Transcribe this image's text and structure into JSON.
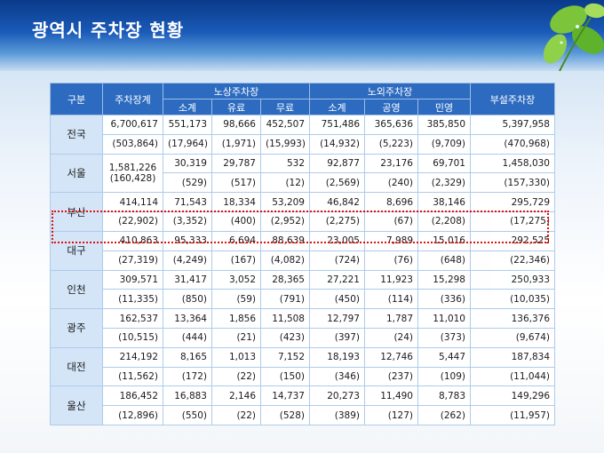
{
  "title": "광역시 주차장 현황",
  "columns": {
    "region": "구분",
    "total": "주차장계",
    "street_group": "노상주차장",
    "offstreet_group": "노외주차장",
    "attached": "부설주차장",
    "street_sub": [
      "소계",
      "유료",
      "무료"
    ],
    "offstreet_sub": [
      "소계",
      "공영",
      "민영"
    ]
  },
  "highlight_color": "#e01010",
  "rows": [
    {
      "name": "전국",
      "r1": [
        "6,700,617",
        "551,173",
        "98,666",
        "452,507",
        "751,486",
        "365,636",
        "385,850",
        "5,397,958"
      ],
      "r2": [
        "(503,864)",
        "(17,964)",
        "(1,971)",
        "(15,993)",
        "(14,932)",
        "(5,223)",
        "(9,709)",
        "(470,968)"
      ]
    },
    {
      "name": "서울",
      "r1": [
        "",
        "30,319",
        "29,787",
        "532",
        "92,877",
        "23,176",
        "69,701",
        "1,458,030"
      ],
      "r2": [
        "",
        "(529)",
        "(517)",
        "(12)",
        "(2,569)",
        "(240)",
        "(2,329)",
        "(157,330)"
      ]
    },
    {
      "name": "부산",
      "r1": [
        "414,114",
        "71,543",
        "18,334",
        "53,209",
        "46,842",
        "8,696",
        "38,146",
        "295,729"
      ],
      "r2": [
        "(22,902)",
        "(3,352)",
        "(400)",
        "(2,952)",
        "(2,275)",
        "(67)",
        "(2,208)",
        "(17,275)"
      ]
    },
    {
      "name": "대구",
      "r1": [
        "410,863",
        "95,333",
        "6,694",
        "88,639",
        "23,005",
        "7,989",
        "15,016",
        "292,525"
      ],
      "r2": [
        "(27,319)",
        "(4,249)",
        "(167)",
        "(4,082)",
        "(724)",
        "(76)",
        "(648)",
        "(22,346)"
      ]
    },
    {
      "name": "인천",
      "r1": [
        "309,571",
        "31,417",
        "3,052",
        "28,365",
        "27,221",
        "11,923",
        "15,298",
        "250,933"
      ],
      "r2": [
        "(11,335)",
        "(850)",
        "(59)",
        "(791)",
        "(450)",
        "(114)",
        "(336)",
        "(10,035)"
      ]
    },
    {
      "name": "광주",
      "r1": [
        "162,537",
        "13,364",
        "1,856",
        "11,508",
        "12,797",
        "1,787",
        "11,010",
        "136,376"
      ],
      "r2": [
        "(10,515)",
        "(444)",
        "(21)",
        "(423)",
        "(397)",
        "(24)",
        "(373)",
        "(9,674)"
      ]
    },
    {
      "name": "대전",
      "r1": [
        "214,192",
        "8,165",
        "1,013",
        "7,152",
        "18,193",
        "12,746",
        "5,447",
        "187,834"
      ],
      "r2": [
        "(11,562)",
        "(172)",
        "(22)",
        "(150)",
        "(346)",
        "(237)",
        "(109)",
        "(11,044)"
      ]
    },
    {
      "name": "울산",
      "r1": [
        "186,452",
        "16,883",
        "2,146",
        "14,737",
        "20,273",
        "11,490",
        "8,783",
        "149,296"
      ],
      "r2": [
        "(12,896)",
        "(550)",
        "(22)",
        "(528)",
        "(389)",
        "(127)",
        "(262)",
        "(11,957)"
      ]
    }
  ],
  "seoul_total": "1,581,226",
  "seoul_total_paren": "(160,428)"
}
